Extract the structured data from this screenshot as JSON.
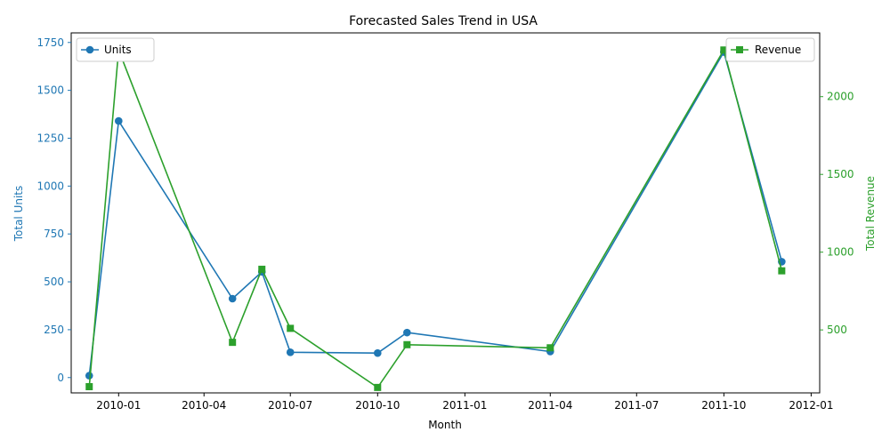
{
  "chart_data": {
    "type": "line",
    "title": "Forecasted Sales Trend in USA",
    "xlabel": "Month",
    "ylabel_left": "Total Units",
    "ylabel_right": "Total Revenue",
    "x_ticks": [
      "2010-01-01",
      "2010-04-01",
      "2010-07-01",
      "2010-10-01",
      "2011-01-01",
      "2011-04-01",
      "2011-07-01",
      "2011-10-01",
      "2012-01-01"
    ],
    "x_tick_labels": [
      "2010-01",
      "2010-04",
      "2010-07",
      "2010-10",
      "2011-01",
      "2011-04",
      "2011-07",
      "2011-10",
      "2012-01"
    ],
    "xlim": [
      "2009-11-12",
      "2012-01-10"
    ],
    "y_left_ticks": [
      0,
      250,
      500,
      750,
      1000,
      1250,
      1500,
      1750
    ],
    "y_left_lim": [
      -80,
      1800
    ],
    "y_right_ticks": [
      500,
      1000,
      1500,
      2000
    ],
    "y_right_lim": [
      95,
      2410
    ],
    "grid": false,
    "legend_left": "top-left",
    "legend_right": "top-right",
    "colors": {
      "units": "#1f77b4",
      "revenue": "#2ca02c"
    },
    "series": [
      {
        "name": "Units",
        "axis": "left",
        "marker": "circle",
        "color": "#1f77b4",
        "x": [
          "2009-12-01",
          "2010-01-01",
          "2010-05-01",
          "2010-06-01",
          "2010-07-01",
          "2010-10-01",
          "2010-11-01",
          "2011-04-01",
          "2011-10-01",
          "2011-12-01"
        ],
        "values": [
          10,
          1340,
          412,
          552,
          132,
          128,
          235,
          136,
          1700,
          605
        ]
      },
      {
        "name": "Revenue",
        "axis": "right",
        "marker": "square",
        "color": "#2ca02c",
        "x": [
          "2009-12-01",
          "2010-01-01",
          "2010-05-01",
          "2010-06-01",
          "2010-07-01",
          "2010-10-01",
          "2010-11-01",
          "2011-04-01",
          "2011-10-01",
          "2011-12-01"
        ],
        "values": [
          135,
          2300,
          420,
          890,
          510,
          130,
          405,
          385,
          2300,
          880
        ]
      }
    ]
  }
}
